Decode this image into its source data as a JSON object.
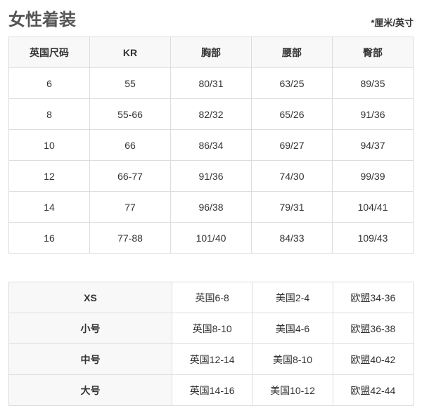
{
  "title": "女性着装",
  "unit_note": "*厘米/英寸",
  "size_table": {
    "headers": [
      "英国尺码",
      "KR",
      "胸部",
      "腰部",
      "臀部"
    ],
    "rows": [
      [
        "6",
        "55",
        "80/31",
        "63/25",
        "89/35"
      ],
      [
        "8",
        "55-66",
        "82/32",
        "65/26",
        "91/36"
      ],
      [
        "10",
        "66",
        "86/34",
        "69/27",
        "94/37"
      ],
      [
        "12",
        "66-77",
        "91/36",
        "74/30",
        "99/39"
      ],
      [
        "14",
        "77",
        "96/38",
        "79/31",
        "104/41"
      ],
      [
        "16",
        "77-88",
        "101/40",
        "84/33",
        "109/43"
      ]
    ]
  },
  "conversion_table": {
    "rows": [
      [
        "XS",
        "英国6-8",
        "美国2-4",
        "欧盟34-36"
      ],
      [
        "小号",
        "英国8-10",
        "美国4-6",
        "欧盟36-38"
      ],
      [
        "中号",
        "英国12-14",
        "美国8-10",
        "欧盟40-42"
      ],
      [
        "大号",
        "英国14-16",
        "美国10-12",
        "欧盟42-44"
      ]
    ]
  }
}
